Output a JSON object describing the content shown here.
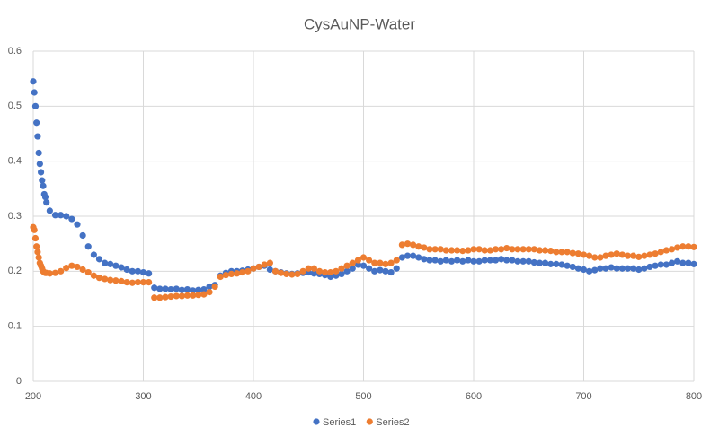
{
  "chart_data": {
    "type": "scatter",
    "title": "CysAuNP-Water",
    "x": [
      200,
      201,
      202,
      203,
      204,
      205,
      206,
      207,
      208,
      209,
      210,
      211,
      212,
      215,
      220,
      225,
      230,
      235,
      240,
      245,
      250,
      255,
      260,
      265,
      270,
      275,
      280,
      285,
      290,
      295,
      300,
      305,
      310,
      315,
      320,
      325,
      330,
      335,
      340,
      345,
      350,
      355,
      360,
      365,
      370,
      375,
      380,
      385,
      390,
      395,
      400,
      405,
      410,
      415,
      420,
      425,
      430,
      435,
      440,
      445,
      450,
      455,
      460,
      465,
      470,
      475,
      480,
      485,
      490,
      495,
      500,
      505,
      510,
      515,
      520,
      525,
      530,
      535,
      540,
      545,
      550,
      555,
      560,
      565,
      570,
      575,
      580,
      585,
      590,
      595,
      600,
      605,
      610,
      615,
      620,
      625,
      630,
      635,
      640,
      645,
      650,
      655,
      660,
      665,
      670,
      675,
      680,
      685,
      690,
      695,
      700,
      705,
      710,
      715,
      720,
      725,
      730,
      735,
      740,
      745,
      750,
      755,
      760,
      765,
      770,
      775,
      780,
      785,
      790,
      795,
      800
    ],
    "series": [
      {
        "name": "Series1",
        "color": "#4472c4",
        "values": [
          0.545,
          0.525,
          0.5,
          0.47,
          0.445,
          0.415,
          0.395,
          0.38,
          0.365,
          0.355,
          0.34,
          0.335,
          0.325,
          0.31,
          0.302,
          0.302,
          0.3,
          0.295,
          0.285,
          0.265,
          0.245,
          0.23,
          0.222,
          0.215,
          0.213,
          0.21,
          0.207,
          0.203,
          0.2,
          0.2,
          0.198,
          0.196,
          0.17,
          0.168,
          0.168,
          0.167,
          0.168,
          0.166,
          0.167,
          0.165,
          0.166,
          0.167,
          0.172,
          0.175,
          0.192,
          0.197,
          0.2,
          0.2,
          0.201,
          0.203,
          0.205,
          0.208,
          0.21,
          0.203,
          0.2,
          0.198,
          0.196,
          0.195,
          0.196,
          0.197,
          0.198,
          0.196,
          0.195,
          0.193,
          0.19,
          0.192,
          0.195,
          0.2,
          0.205,
          0.212,
          0.21,
          0.205,
          0.2,
          0.202,
          0.2,
          0.198,
          0.205,
          0.225,
          0.228,
          0.228,
          0.225,
          0.222,
          0.22,
          0.22,
          0.218,
          0.22,
          0.218,
          0.22,
          0.218,
          0.22,
          0.218,
          0.218,
          0.22,
          0.22,
          0.22,
          0.222,
          0.22,
          0.22,
          0.218,
          0.218,
          0.218,
          0.216,
          0.215,
          0.215,
          0.213,
          0.213,
          0.212,
          0.21,
          0.208,
          0.205,
          0.203,
          0.2,
          0.202,
          0.205,
          0.205,
          0.207,
          0.205,
          0.205,
          0.205,
          0.205,
          0.203,
          0.205,
          0.208,
          0.21,
          0.212,
          0.212,
          0.215,
          0.218,
          0.215,
          0.215,
          0.213
        ]
      },
      {
        "name": "Series2",
        "color": "#ed7d31",
        "values": [
          0.28,
          0.275,
          0.26,
          0.245,
          0.235,
          0.225,
          0.215,
          0.21,
          0.205,
          0.2,
          0.198,
          0.197,
          0.197,
          0.196,
          0.197,
          0.2,
          0.206,
          0.21,
          0.208,
          0.203,
          0.198,
          0.192,
          0.188,
          0.186,
          0.184,
          0.183,
          0.182,
          0.18,
          0.179,
          0.18,
          0.18,
          0.18,
          0.152,
          0.152,
          0.153,
          0.154,
          0.155,
          0.155,
          0.156,
          0.156,
          0.157,
          0.158,
          0.162,
          0.172,
          0.19,
          0.193,
          0.195,
          0.196,
          0.198,
          0.2,
          0.205,
          0.208,
          0.212,
          0.215,
          0.2,
          0.197,
          0.195,
          0.194,
          0.195,
          0.2,
          0.205,
          0.205,
          0.2,
          0.198,
          0.198,
          0.2,
          0.205,
          0.21,
          0.215,
          0.22,
          0.225,
          0.22,
          0.215,
          0.215,
          0.213,
          0.215,
          0.22,
          0.248,
          0.25,
          0.248,
          0.245,
          0.243,
          0.24,
          0.24,
          0.24,
          0.238,
          0.238,
          0.238,
          0.237,
          0.238,
          0.24,
          0.24,
          0.238,
          0.238,
          0.24,
          0.24,
          0.242,
          0.24,
          0.24,
          0.24,
          0.24,
          0.24,
          0.238,
          0.238,
          0.237,
          0.235,
          0.235,
          0.235,
          0.233,
          0.232,
          0.23,
          0.228,
          0.225,
          0.225,
          0.228,
          0.23,
          0.232,
          0.23,
          0.228,
          0.228,
          0.226,
          0.228,
          0.23,
          0.232,
          0.235,
          0.238,
          0.24,
          0.243,
          0.245,
          0.245,
          0.244
        ]
      }
    ],
    "xlim": [
      200,
      800
    ],
    "xticks": [
      200,
      300,
      400,
      500,
      600,
      700,
      800
    ],
    "ylim": [
      0,
      0.6
    ],
    "yticks": [
      0,
      0.1,
      0.2,
      0.3,
      0.4,
      0.5,
      0.6
    ],
    "grid": true,
    "legend": "bottom"
  }
}
